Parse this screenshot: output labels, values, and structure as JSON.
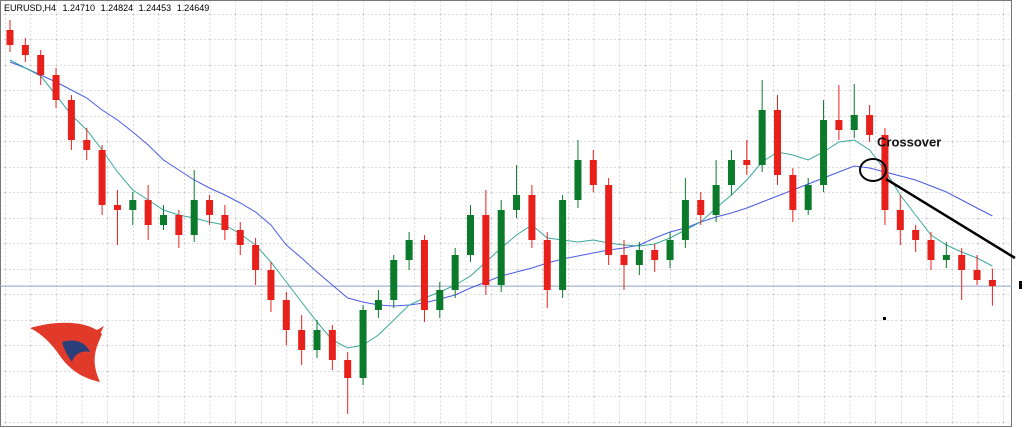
{
  "chart_data": {
    "type": "candlestick",
    "title": "EURUSD,H4",
    "ohlc_labels": [
      "1.24710",
      "1.24824",
      "1.24453",
      "1.24649"
    ],
    "annotation": "Crossover",
    "up_color": "#0b7a2a",
    "down_color": "#e8201c",
    "ylim": [
      1.2323,
      1.2751
    ],
    "open": [
      1.2721,
      1.2706,
      1.2696,
      1.2676,
      1.2651,
      1.2611,
      1.2601,
      1.2546,
      1.2541,
      1.2551,
      1.2526,
      1.2536,
      1.2516,
      1.2551,
      1.2536,
      1.2521,
      1.2506,
      1.2481,
      1.2451,
      1.2421,
      1.2401,
      1.2421,
      1.2391,
      1.2373,
      1.2441,
      1.2451,
      1.2491,
      1.2511,
      1.2441,
      1.2461,
      1.2496,
      1.2536,
      1.2466,
      1.2541,
      1.2556,
      1.2511,
      1.2461,
      1.2551,
      1.2591,
      1.2566,
      1.2496,
      1.2486,
      1.2501,
      1.2491,
      1.2511,
      1.2551,
      1.2536,
      1.2566,
      1.2591,
      1.2586,
      1.2641,
      1.2576,
      1.2541,
      1.2566,
      1.2631,
      1.2621,
      1.2636,
      1.2616,
      1.2541,
      1.2521,
      1.2511,
      1.2491,
      1.2496,
      1.2481,
      1.2471
    ],
    "high": [
      1.2731,
      1.2713,
      1.2701,
      1.2683,
      1.2656,
      1.2623,
      1.2606,
      1.2561,
      1.2559,
      1.2566,
      1.2546,
      1.2541,
      1.2581,
      1.2556,
      1.2546,
      1.2529,
      1.2513,
      1.2489,
      1.2459,
      1.2436,
      1.2431,
      1.2426,
      1.2399,
      1.2446,
      1.2461,
      1.2496,
      1.2519,
      1.2516,
      1.2469,
      1.2503,
      1.2546,
      1.2561,
      1.2551,
      1.2586,
      1.2566,
      1.2519,
      1.2556,
      1.2611,
      1.2601,
      1.2573,
      1.2511,
      1.2509,
      1.2507,
      1.2519,
      1.2573,
      1.2559,
      1.2591,
      1.2601,
      1.2611,
      1.2671,
      1.2656,
      1.2583,
      1.2573,
      1.2651,
      1.2666,
      1.2667,
      1.2646,
      1.2623,
      1.2556,
      1.2526,
      1.2519,
      1.2509,
      1.2503,
      1.2496,
      1.24824
    ],
    "low": [
      1.2699,
      1.2689,
      1.2666,
      1.2643,
      1.2601,
      1.2591,
      1.2536,
      1.2506,
      1.2526,
      1.2511,
      1.2521,
      1.2503,
      1.2509,
      1.2526,
      1.2511,
      1.2496,
      1.2466,
      1.2439,
      1.2406,
      1.2386,
      1.2393,
      1.2381,
      1.2337,
      1.2366,
      1.2433,
      1.2443,
      1.2481,
      1.2429,
      1.2433,
      1.2453,
      1.2489,
      1.2456,
      1.2459,
      1.2533,
      1.2503,
      1.2443,
      1.2453,
      1.2543,
      1.2559,
      1.2486,
      1.2461,
      1.2476,
      1.2479,
      1.2483,
      1.2503,
      1.2526,
      1.2529,
      1.2556,
      1.2576,
      1.2579,
      1.2566,
      1.2529,
      1.2536,
      1.2559,
      1.2611,
      1.2613,
      1.2609,
      1.2526,
      1.2506,
      1.2499,
      1.2481,
      1.2483,
      1.2451,
      1.2466,
      1.24453
    ],
    "close": [
      1.2706,
      1.2696,
      1.2676,
      1.2651,
      1.2611,
      1.2601,
      1.2546,
      1.2541,
      1.2551,
      1.2526,
      1.2536,
      1.2516,
      1.2551,
      1.2536,
      1.2521,
      1.2506,
      1.2481,
      1.2451,
      1.2421,
      1.2401,
      1.2421,
      1.2391,
      1.2373,
      1.2441,
      1.2451,
      1.2491,
      1.2511,
      1.2441,
      1.2461,
      1.2496,
      1.2536,
      1.2466,
      1.2541,
      1.2556,
      1.2511,
      1.2461,
      1.2551,
      1.2591,
      1.2566,
      1.2496,
      1.2486,
      1.2501,
      1.2491,
      1.2511,
      1.2551,
      1.2536,
      1.2566,
      1.2591,
      1.2586,
      1.2641,
      1.2576,
      1.2541,
      1.2566,
      1.2631,
      1.2621,
      1.2636,
      1.2616,
      1.2541,
      1.2521,
      1.2511,
      1.2491,
      1.2496,
      1.2481,
      1.2471,
      1.24649
    ],
    "series": [
      {
        "color": "#4a5ce6",
        "values": [
          1.2689,
          1.2683,
          1.2676,
          1.2669,
          1.2661,
          1.2653,
          1.2641,
          1.2631,
          1.2619,
          1.2606,
          1.2591,
          1.2581,
          1.2571,
          1.2563,
          1.2556,
          1.2548,
          1.2539,
          1.2526,
          1.2506,
          1.2493,
          1.2479,
          1.2466,
          1.2453,
          1.2449,
          1.2446,
          1.2445,
          1.2446,
          1.2448,
          1.2452,
          1.2456,
          1.2463,
          1.2469,
          1.2475,
          1.2479,
          1.2483,
          1.2488,
          1.2492,
          1.2495,
          1.2498,
          1.2501,
          1.2503,
          1.2506,
          1.2513,
          1.2519,
          1.2523,
          1.2529,
          1.2534,
          1.2538,
          1.2543,
          1.2549,
          1.2555,
          1.2561,
          1.2567,
          1.2573,
          1.2579,
          1.2585,
          1.2583,
          1.2579,
          1.2575,
          1.2571,
          1.2565,
          1.2559,
          1.2551,
          1.2543,
          1.2535
        ]
      },
      {
        "color": "#3aa89e",
        "values": [
          1.2691,
          1.2683,
          1.2675,
          1.2656,
          1.2636,
          1.2621,
          1.2601,
          1.2579,
          1.2561,
          1.2551,
          1.2541,
          1.2536,
          1.2533,
          1.2529,
          1.2526,
          1.2517,
          1.2506,
          1.2489,
          1.2469,
          1.2449,
          1.2429,
          1.2411,
          1.2403,
          1.2406,
          1.2416,
          1.2431,
          1.2446,
          1.2453,
          1.2459,
          1.2466,
          1.2475,
          1.2489,
          1.2503,
          1.2516,
          1.2526,
          1.2513,
          1.2511,
          1.2509,
          1.2511,
          1.2508,
          1.2506,
          1.2505,
          1.2507,
          1.2513,
          1.2521,
          1.2529,
          1.2543,
          1.2556,
          1.2571,
          1.2589,
          1.2599,
          1.2596,
          1.2591,
          1.2599,
          1.2609,
          1.2611,
          1.2601,
          1.2581,
          1.2556,
          1.2536,
          1.2516,
          1.2506,
          1.2499,
          1.2493,
          1.2485
        ]
      }
    ]
  }
}
